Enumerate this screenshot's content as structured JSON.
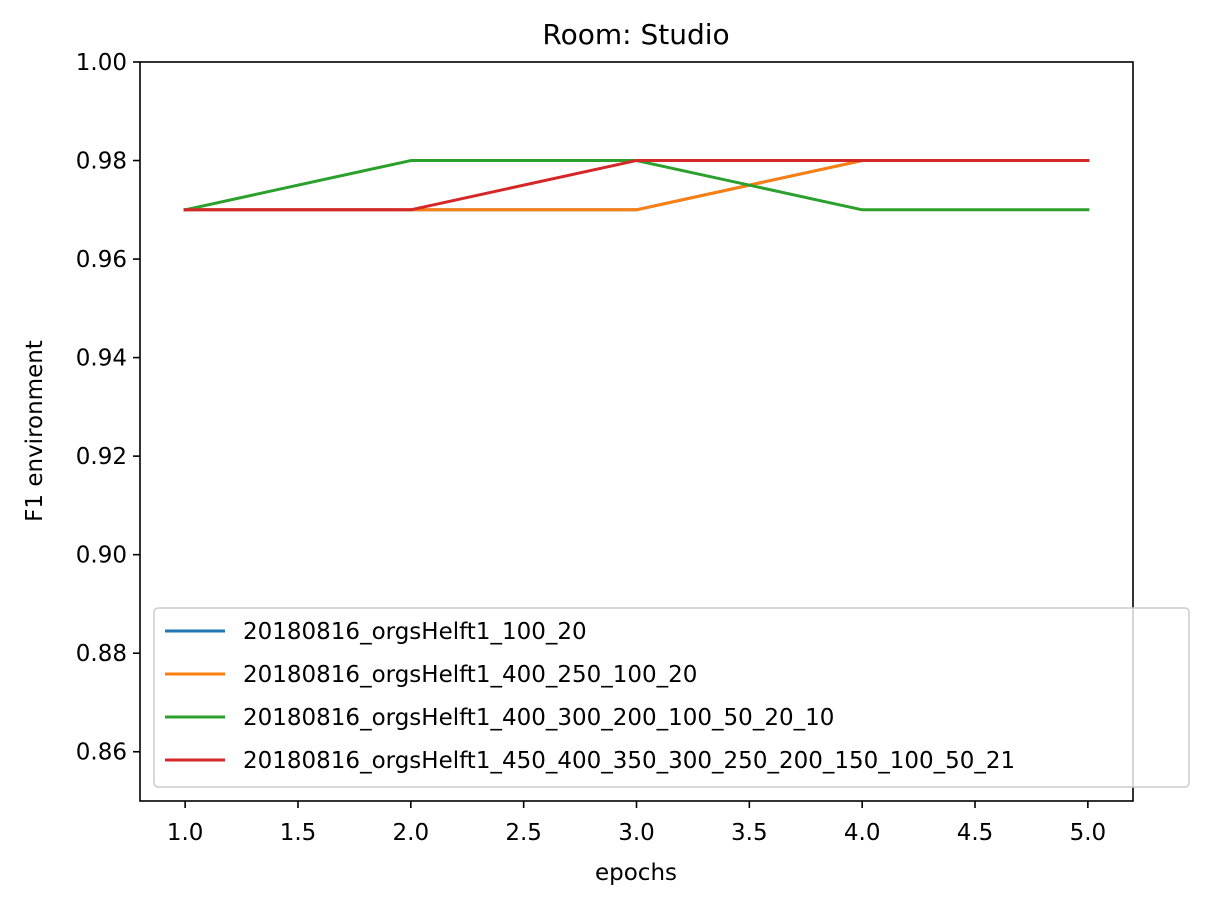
{
  "chart_data": {
    "type": "line",
    "title": "Room: Studio",
    "xlabel": "epochs",
    "ylabel": "F1 environment",
    "xlim": [
      0.8,
      5.2
    ],
    "ylim": [
      0.85,
      1.0
    ],
    "xticks": [
      1.0,
      1.5,
      2.0,
      2.5,
      3.0,
      3.5,
      4.0,
      4.5,
      5.0
    ],
    "xtick_labels": [
      "1.0",
      "1.5",
      "2.0",
      "2.5",
      "3.0",
      "3.5",
      "4.0",
      "4.5",
      "5.0"
    ],
    "yticks": [
      0.86,
      0.88,
      0.9,
      0.92,
      0.94,
      0.96,
      0.98,
      1.0
    ],
    "ytick_labels": [
      "0.86",
      "0.88",
      "0.90",
      "0.92",
      "0.94",
      "0.96",
      "0.98",
      "1.00"
    ],
    "grid": false,
    "legend_position": "lower-right",
    "x": [
      1,
      2,
      3,
      4,
      5
    ],
    "series": [
      {
        "name": "20180816_orgsHelft1_100_20",
        "color": "#1f77b4",
        "values": [
          0.97,
          0.97,
          0.97,
          0.98,
          0.98
        ]
      },
      {
        "name": "20180816_orgsHelft1_400_250_100_20",
        "color": "#ff7f0e",
        "values": [
          0.97,
          0.97,
          0.97,
          0.98,
          0.98
        ]
      },
      {
        "name": "20180816_orgsHelft1_400_300_200_100_50_20_10",
        "color": "#2ca02c",
        "values": [
          0.97,
          0.98,
          0.98,
          0.97,
          0.97
        ]
      },
      {
        "name": "20180816_orgsHelft1_450_400_350_300_250_200_150_100_50_21",
        "color": "#d62728",
        "values": [
          0.97,
          0.97,
          0.98,
          0.98,
          0.98
        ]
      }
    ]
  }
}
